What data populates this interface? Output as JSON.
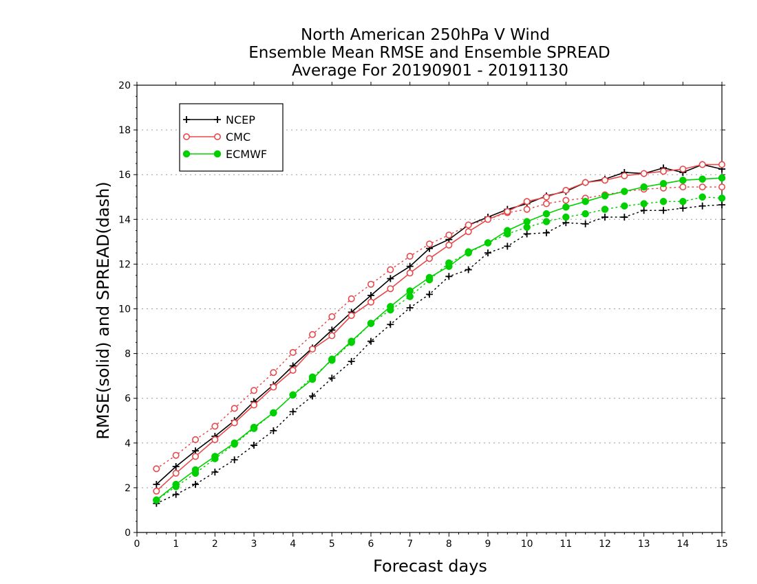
{
  "chart_data": {
    "type": "line",
    "title": [
      "North American 250hPa V Wind",
      "Ensemble Mean RMSE and Ensemble SPREAD",
      "Average For 20190901 - 20191130"
    ],
    "xlabel": "Forecast days",
    "ylabel": "RMSE(solid) and SPREAD(dash)",
    "xlim": [
      0,
      15
    ],
    "ylim": [
      0,
      20
    ],
    "xticks": [
      0,
      1,
      2,
      3,
      4,
      5,
      6,
      7,
      8,
      9,
      10,
      11,
      12,
      13,
      14,
      15
    ],
    "yticks": [
      0,
      2,
      4,
      6,
      8,
      10,
      12,
      14,
      16,
      18,
      20
    ],
    "grid": true,
    "legend_position": "top-left",
    "x": [
      0.5,
      1,
      1.5,
      2,
      2.5,
      3,
      3.5,
      4,
      4.5,
      5,
      5.5,
      6,
      6.5,
      7,
      7.5,
      8,
      8.5,
      9,
      9.5,
      10,
      10.5,
      11,
      11.5,
      12,
      12.5,
      13,
      13.5,
      14,
      14.5,
      15
    ],
    "series": [
      {
        "name": "NCEP",
        "color": "#000000",
        "marker": "plus",
        "rmse": [
          2.15,
          2.95,
          3.65,
          4.3,
          5.0,
          5.85,
          6.6,
          7.45,
          8.25,
          9.05,
          9.85,
          10.6,
          11.35,
          11.9,
          12.7,
          13.1,
          13.75,
          14.1,
          14.45,
          14.7,
          15.05,
          15.25,
          15.65,
          15.8,
          16.1,
          16.05,
          16.3,
          16.1,
          16.45,
          16.25
        ],
        "spread": [
          1.3,
          1.7,
          2.15,
          2.7,
          3.25,
          3.9,
          4.55,
          5.4,
          6.1,
          6.9,
          7.65,
          8.55,
          9.3,
          10.05,
          10.65,
          11.45,
          11.75,
          12.5,
          12.8,
          13.35,
          13.4,
          13.85,
          13.8,
          14.1,
          14.1,
          14.4,
          14.4,
          14.5,
          14.6,
          14.65
        ]
      },
      {
        "name": "CMC",
        "color": "#e8484a",
        "marker": "open-circle",
        "rmse": [
          1.85,
          2.65,
          3.4,
          4.15,
          4.9,
          5.7,
          6.5,
          7.25,
          8.2,
          8.8,
          9.7,
          10.3,
          10.9,
          11.6,
          12.25,
          12.85,
          13.45,
          14.0,
          14.35,
          14.8,
          15.0,
          15.3,
          15.65,
          15.75,
          15.95,
          16.05,
          16.15,
          16.25,
          16.45,
          16.45
        ],
        "spread": [
          2.85,
          3.45,
          4.15,
          4.75,
          5.55,
          6.35,
          7.15,
          8.05,
          8.85,
          9.65,
          10.45,
          11.1,
          11.75,
          12.35,
          12.9,
          13.3,
          13.75,
          14.0,
          14.3,
          14.45,
          14.7,
          14.85,
          14.95,
          15.1,
          15.25,
          15.35,
          15.4,
          15.45,
          15.45,
          15.45
        ]
      },
      {
        "name": "ECMWF",
        "color": "#00d000",
        "marker": "filled-circle",
        "rmse": [
          1.45,
          2.15,
          2.8,
          3.4,
          4.0,
          4.7,
          5.35,
          6.15,
          6.85,
          7.75,
          8.55,
          9.35,
          10.1,
          10.8,
          11.4,
          11.9,
          12.55,
          12.95,
          13.5,
          13.9,
          14.25,
          14.55,
          14.8,
          15.05,
          15.25,
          15.45,
          15.6,
          15.75,
          15.8,
          15.85
        ],
        "spread": [
          1.45,
          2.05,
          2.65,
          3.3,
          3.95,
          4.65,
          5.35,
          6.15,
          6.95,
          7.7,
          8.5,
          9.35,
          9.95,
          10.55,
          11.3,
          12.05,
          12.5,
          12.95,
          13.35,
          13.65,
          13.9,
          14.1,
          14.25,
          14.45,
          14.6,
          14.7,
          14.8,
          14.8,
          15.0,
          14.95
        ]
      }
    ]
  }
}
